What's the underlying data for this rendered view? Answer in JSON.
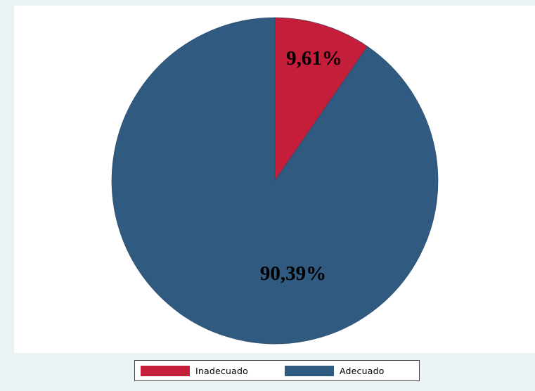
{
  "chart_data": {
    "type": "pie",
    "slices": [
      {
        "name": "Inadecuado",
        "value": 9.61,
        "label": "9,61%",
        "color": "#c41e3a"
      },
      {
        "name": "Adecuado",
        "value": 90.39,
        "label": "90,39%",
        "color": "#305a80"
      }
    ],
    "start_angle": "12-o'clock",
    "direction": "clockwise",
    "legend_position": "bottom",
    "background_color": "#eaf2f3",
    "plot_color": "#ffffff"
  }
}
